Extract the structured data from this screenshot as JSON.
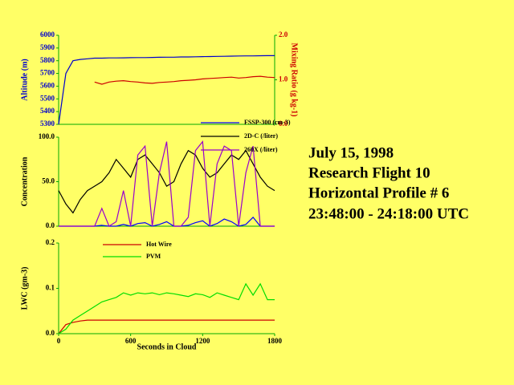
{
  "annotations": [
    "July 15, 1998",
    "Research Flight 10",
    "Horizontal Profile # 6",
    "23:48:00 - 24:18:00 UTC"
  ],
  "chart_data": [
    {
      "type": "line",
      "y_label": "Altitude (m)",
      "y2_label": "Mixing Ratio (g kg-1)",
      "xlim": [
        0,
        1800
      ],
      "ylim": [
        5300,
        6000
      ],
      "yticks": [
        5300,
        5400,
        5500,
        5600,
        5700,
        5800,
        5900,
        6000
      ],
      "y2lim": [
        0,
        2
      ],
      "y2ticks": [
        {
          "value": 0,
          "label": "0.0"
        },
        {
          "value": 1,
          "label": "1.0"
        },
        {
          "value": 2,
          "label": "2.0"
        }
      ],
      "axis_color": "#00aa00",
      "y_label_color": "#0000cc",
      "y2_label_color": "#cc0000",
      "x": [
        0,
        60,
        120,
        180,
        240,
        300,
        360,
        420,
        480,
        540,
        600,
        660,
        720,
        780,
        840,
        900,
        960,
        1020,
        1080,
        1140,
        1200,
        1260,
        1320,
        1380,
        1440,
        1500,
        1560,
        1620,
        1680,
        1740,
        1800
      ],
      "series": [
        {
          "name": "Altitude",
          "color": "#0000cc",
          "values": [
            5300,
            5700,
            5800,
            5810,
            5815,
            5820,
            5820,
            5822,
            5822,
            5823,
            5824,
            5825,
            5825,
            5826,
            5827,
            5828,
            5828,
            5830,
            5830,
            5831,
            5832,
            5833,
            5834,
            5835,
            5836,
            5837,
            5838,
            5838,
            5839,
            5840,
            5840
          ]
        },
        {
          "name": "Mixing Ratio",
          "color": "#cc0000",
          "axis": "y2",
          "values": [
            null,
            null,
            null,
            null,
            null,
            0.95,
            0.9,
            0.95,
            0.97,
            0.98,
            0.96,
            0.95,
            0.93,
            0.92,
            0.94,
            0.95,
            0.96,
            0.98,
            0.99,
            1.0,
            1.02,
            1.03,
            1.04,
            1.05,
            1.06,
            1.04,
            1.05,
            1.07,
            1.08,
            1.06,
            1.05
          ]
        }
      ]
    },
    {
      "type": "line",
      "y_label": "Concentration",
      "xlim": [
        0,
        1800
      ],
      "ylim": [
        0,
        100
      ],
      "yticks": [
        {
          "value": 0,
          "label": "0.0"
        },
        {
          "value": 50,
          "label": "50.0"
        },
        {
          "value": 100,
          "label": "100.0"
        }
      ],
      "axis_color": "#00aa00",
      "legend": "top-right",
      "x": [
        0,
        60,
        120,
        180,
        240,
        300,
        360,
        420,
        480,
        540,
        600,
        660,
        720,
        780,
        840,
        900,
        960,
        1020,
        1080,
        1140,
        1200,
        1260,
        1320,
        1380,
        1440,
        1500,
        1560,
        1620,
        1680,
        1740,
        1800
      ],
      "series": [
        {
          "name": "FSSP-300 (cm-3)",
          "color": "#0000ff",
          "values": [
            0,
            0,
            0,
            0,
            0,
            0,
            1,
            0,
            0,
            2,
            0,
            3,
            4,
            0,
            2,
            5,
            0,
            0,
            1,
            4,
            6,
            0,
            3,
            8,
            5,
            0,
            2,
            10,
            0,
            0,
            0
          ]
        },
        {
          "name": "2D-C (/liter)",
          "color": "#000000",
          "values": [
            40,
            25,
            15,
            30,
            40,
            45,
            50,
            60,
            75,
            65,
            55,
            75,
            80,
            70,
            60,
            45,
            50,
            70,
            85,
            80,
            65,
            55,
            60,
            70,
            80,
            75,
            85,
            70,
            55,
            45,
            40
          ]
        },
        {
          "name": "260X (/liter)",
          "color": "#9900cc",
          "values": [
            0,
            0,
            0,
            0,
            0,
            0,
            20,
            0,
            5,
            40,
            0,
            80,
            90,
            0,
            60,
            95,
            0,
            0,
            10,
            85,
            95,
            0,
            70,
            90,
            85,
            0,
            60,
            90,
            0,
            0,
            0
          ]
        }
      ]
    },
    {
      "type": "line",
      "y_label": "LWC (gm-3)",
      "x_label": "Seconds in Cloud",
      "xlim": [
        0,
        1800
      ],
      "xticks": [
        0,
        600,
        1200,
        1800
      ],
      "ylim": [
        0,
        0.2
      ],
      "yticks": [
        {
          "value": 0,
          "label": "0.0"
        },
        {
          "value": 0.1,
          "label": "0.1"
        },
        {
          "value": 0.2,
          "label": "0.2"
        }
      ],
      "axis_color": "#00aa00",
      "legend": "top-center",
      "x": [
        0,
        60,
        120,
        180,
        240,
        300,
        360,
        420,
        480,
        540,
        600,
        660,
        720,
        780,
        840,
        900,
        960,
        1020,
        1080,
        1140,
        1200,
        1260,
        1320,
        1380,
        1440,
        1500,
        1560,
        1620,
        1680,
        1740,
        1800
      ],
      "series": [
        {
          "name": "Hot Wire",
          "color": "#cc0000",
          "values": [
            0,
            0.02,
            0.025,
            0.028,
            0.03,
            0.03,
            0.03,
            0.03,
            0.03,
            0.03,
            0.03,
            0.03,
            0.03,
            0.03,
            0.03,
            0.03,
            0.03,
            0.03,
            0.03,
            0.03,
            0.03,
            0.03,
            0.03,
            0.03,
            0.03,
            0.03,
            0.03,
            0.03,
            0.03,
            0.03,
            0.03
          ]
        },
        {
          "name": "PVM",
          "color": "#00dd00",
          "values": [
            0,
            0.01,
            0.03,
            0.04,
            0.05,
            0.06,
            0.07,
            0.075,
            0.08,
            0.09,
            0.085,
            0.09,
            0.088,
            0.09,
            0.086,
            0.09,
            0.088,
            0.085,
            0.082,
            0.088,
            0.086,
            0.08,
            0.09,
            0.085,
            0.08,
            0.075,
            0.11,
            0.085,
            0.11,
            0.075,
            0.075
          ]
        }
      ]
    }
  ]
}
